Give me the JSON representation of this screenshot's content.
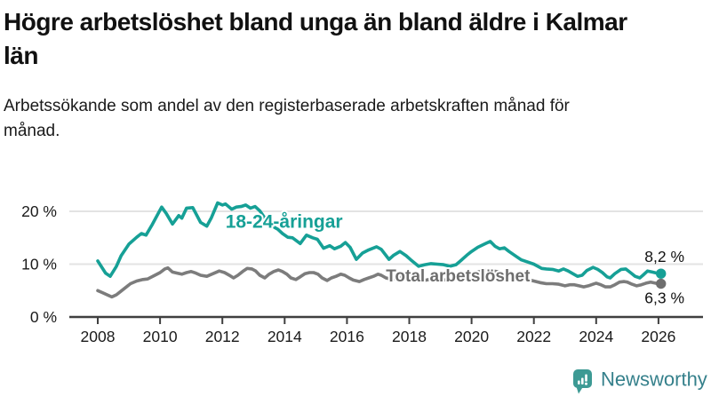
{
  "header": {
    "title": "Högre arbetslöshet bland unga än bland äldre i Kalmar län",
    "subtitle": "Arbetssökande som andel av den registerbaserade arbetskraften månad för månad."
  },
  "branding": {
    "name": "Newsworthy",
    "icon": "newsworthy-chart-bubble-icon",
    "icon_color": "#3d9a94",
    "text_color": "#35808b"
  },
  "colors": {
    "youth_line": "#16a096",
    "total_line": "#7c7c7c",
    "total_label": "#6e6e6e",
    "total_dot": "#6e6e6e",
    "gridline": "#e3e3e3",
    "axis": "#3f3f3f"
  },
  "chart_data": {
    "type": "line",
    "title": "Högre arbetslöshet bland unga än bland äldre i Kalmar län",
    "xlabel": "",
    "ylabel": "",
    "grid": "horizontal",
    "legend_position": "inline-labels",
    "x_axis": {
      "ticks": [
        2008,
        2010,
        2012,
        2014,
        2016,
        2018,
        2020,
        2022,
        2024,
        2026
      ],
      "min": 2007.1,
      "max": 2027.4
    },
    "y_axis": {
      "ticks": [
        {
          "value": 0,
          "label": "0 %"
        },
        {
          "value": 10,
          "label": "10 %"
        },
        {
          "value": 20,
          "label": "20 %"
        }
      ],
      "min": 0,
      "max": 22.5
    },
    "series": [
      {
        "name": "18-24-åringar",
        "color": "#16a096",
        "end_label": "8,2 %",
        "end_value": 8.2,
        "label_anchor": {
          "x": 2012.1,
          "y": 18.1
        },
        "points": [
          [
            2008.0,
            10.6
          ],
          [
            2008.25,
            8.3
          ],
          [
            2008.4,
            7.7
          ],
          [
            2008.6,
            9.6
          ],
          [
            2008.75,
            11.6
          ],
          [
            2009.0,
            13.8
          ],
          [
            2009.25,
            15.1
          ],
          [
            2009.4,
            15.8
          ],
          [
            2009.55,
            15.5
          ],
          [
            2009.75,
            17.5
          ],
          [
            2010.05,
            20.8
          ],
          [
            2010.2,
            19.6
          ],
          [
            2010.4,
            17.6
          ],
          [
            2010.6,
            19.2
          ],
          [
            2010.7,
            18.7
          ],
          [
            2010.85,
            20.6
          ],
          [
            2011.05,
            20.7
          ],
          [
            2011.3,
            17.9
          ],
          [
            2011.5,
            17.2
          ],
          [
            2011.65,
            18.8
          ],
          [
            2011.85,
            21.6
          ],
          [
            2012.0,
            21.2
          ],
          [
            2012.1,
            21.4
          ],
          [
            2012.3,
            20.4
          ],
          [
            2012.45,
            20.8
          ],
          [
            2012.6,
            20.9
          ],
          [
            2012.75,
            21.2
          ],
          [
            2012.9,
            20.6
          ],
          [
            2013.05,
            20.9
          ],
          [
            2013.2,
            20.1
          ],
          [
            2013.4,
            18.4
          ],
          [
            2013.6,
            17.2
          ],
          [
            2013.78,
            16.6
          ],
          [
            2013.93,
            15.8
          ],
          [
            2014.1,
            15.1
          ],
          [
            2014.25,
            15.0
          ],
          [
            2014.5,
            13.9
          ],
          [
            2014.7,
            15.5
          ],
          [
            2014.9,
            15.0
          ],
          [
            2015.05,
            14.7
          ],
          [
            2015.25,
            13.0
          ],
          [
            2015.45,
            13.5
          ],
          [
            2015.6,
            12.9
          ],
          [
            2015.8,
            13.4
          ],
          [
            2015.95,
            14.1
          ],
          [
            2016.1,
            13.2
          ],
          [
            2016.3,
            10.9
          ],
          [
            2016.5,
            12.1
          ],
          [
            2016.7,
            12.7
          ],
          [
            2016.95,
            13.3
          ],
          [
            2017.1,
            12.8
          ],
          [
            2017.35,
            10.9
          ],
          [
            2017.5,
            11.7
          ],
          [
            2017.7,
            12.4
          ],
          [
            2017.9,
            11.6
          ],
          [
            2018.05,
            10.8
          ],
          [
            2018.3,
            9.6
          ],
          [
            2018.5,
            9.9
          ],
          [
            2018.7,
            10.1
          ],
          [
            2018.9,
            10.0
          ],
          [
            2019.1,
            9.9
          ],
          [
            2019.3,
            9.6
          ],
          [
            2019.5,
            9.9
          ],
          [
            2019.7,
            10.9
          ],
          [
            2019.85,
            11.7
          ],
          [
            2020.0,
            12.4
          ],
          [
            2020.2,
            13.2
          ],
          [
            2020.45,
            13.9
          ],
          [
            2020.6,
            14.3
          ],
          [
            2020.75,
            13.4
          ],
          [
            2020.9,
            12.9
          ],
          [
            2021.05,
            13.1
          ],
          [
            2021.2,
            12.4
          ],
          [
            2021.45,
            11.4
          ],
          [
            2021.6,
            10.8
          ],
          [
            2021.8,
            10.4
          ],
          [
            2022.0,
            10.0
          ],
          [
            2022.25,
            9.2
          ],
          [
            2022.4,
            9.1
          ],
          [
            2022.6,
            9.0
          ],
          [
            2022.8,
            8.7
          ],
          [
            2022.95,
            9.1
          ],
          [
            2023.1,
            8.7
          ],
          [
            2023.25,
            8.2
          ],
          [
            2023.4,
            7.7
          ],
          [
            2023.55,
            7.9
          ],
          [
            2023.7,
            8.8
          ],
          [
            2023.9,
            9.4
          ],
          [
            2024.05,
            9.0
          ],
          [
            2024.2,
            8.4
          ],
          [
            2024.35,
            7.6
          ],
          [
            2024.45,
            7.4
          ],
          [
            2024.6,
            8.2
          ],
          [
            2024.8,
            9.0
          ],
          [
            2024.95,
            9.1
          ],
          [
            2025.1,
            8.4
          ],
          [
            2025.25,
            7.7
          ],
          [
            2025.4,
            7.4
          ],
          [
            2025.5,
            7.9
          ],
          [
            2025.65,
            8.7
          ],
          [
            2025.8,
            8.5
          ],
          [
            2025.95,
            8.3
          ],
          [
            2026.08,
            8.2
          ]
        ]
      },
      {
        "name": "Total arbetslöshet",
        "color": "#7c7c7c",
        "end_label": "6,3 %",
        "end_value": 6.3,
        "label_anchor": {
          "x": 2017.25,
          "y": 7.9
        },
        "points": [
          [
            2008.0,
            5.0
          ],
          [
            2008.15,
            4.6
          ],
          [
            2008.3,
            4.2
          ],
          [
            2008.45,
            3.8
          ],
          [
            2008.6,
            4.2
          ],
          [
            2008.75,
            4.9
          ],
          [
            2008.9,
            5.6
          ],
          [
            2009.05,
            6.3
          ],
          [
            2009.25,
            6.8
          ],
          [
            2009.45,
            7.1
          ],
          [
            2009.6,
            7.2
          ],
          [
            2009.8,
            7.8
          ],
          [
            2010.0,
            8.4
          ],
          [
            2010.15,
            9.1
          ],
          [
            2010.25,
            9.3
          ],
          [
            2010.4,
            8.5
          ],
          [
            2010.55,
            8.3
          ],
          [
            2010.7,
            8.1
          ],
          [
            2010.85,
            8.4
          ],
          [
            2011.0,
            8.6
          ],
          [
            2011.15,
            8.3
          ],
          [
            2011.3,
            7.9
          ],
          [
            2011.5,
            7.7
          ],
          [
            2011.7,
            8.2
          ],
          [
            2011.9,
            8.7
          ],
          [
            2012.07,
            8.4
          ],
          [
            2012.25,
            7.8
          ],
          [
            2012.36,
            7.4
          ],
          [
            2012.5,
            7.9
          ],
          [
            2012.65,
            8.6
          ],
          [
            2012.8,
            9.2
          ],
          [
            2012.95,
            9.1
          ],
          [
            2013.07,
            8.7
          ],
          [
            2013.2,
            7.9
          ],
          [
            2013.36,
            7.4
          ],
          [
            2013.5,
            8.1
          ],
          [
            2013.65,
            8.6
          ],
          [
            2013.8,
            8.9
          ],
          [
            2013.93,
            8.6
          ],
          [
            2014.07,
            8.1
          ],
          [
            2014.2,
            7.4
          ],
          [
            2014.36,
            7.1
          ],
          [
            2014.5,
            7.6
          ],
          [
            2014.65,
            8.2
          ],
          [
            2014.8,
            8.4
          ],
          [
            2014.93,
            8.4
          ],
          [
            2015.07,
            8.1
          ],
          [
            2015.2,
            7.4
          ],
          [
            2015.36,
            6.9
          ],
          [
            2015.5,
            7.4
          ],
          [
            2015.65,
            7.7
          ],
          [
            2015.8,
            8.1
          ],
          [
            2015.93,
            7.9
          ],
          [
            2016.07,
            7.4
          ],
          [
            2016.2,
            7.0
          ],
          [
            2016.4,
            6.7
          ],
          [
            2016.55,
            7.1
          ],
          [
            2016.7,
            7.4
          ],
          [
            2016.85,
            7.7
          ],
          [
            2017.0,
            8.1
          ],
          [
            2017.1,
            7.9
          ],
          [
            2017.25,
            7.4
          ],
          [
            2017.4,
            7.2
          ],
          [
            2017.55,
            7.3
          ],
          [
            2017.7,
            7.5
          ],
          [
            2017.85,
            7.6
          ],
          [
            2018.0,
            7.3
          ],
          [
            2018.2,
            6.9
          ],
          [
            2018.4,
            6.8
          ],
          [
            2018.55,
            7.0
          ],
          [
            2018.7,
            7.2
          ],
          [
            2018.9,
            7.3
          ],
          [
            2019.05,
            7.1
          ],
          [
            2019.25,
            6.9
          ],
          [
            2019.4,
            7.1
          ],
          [
            2019.6,
            7.4
          ],
          [
            2019.8,
            7.7
          ],
          [
            2020.0,
            8.0
          ],
          [
            2020.2,
            8.5
          ],
          [
            2020.4,
            8.8
          ],
          [
            2020.6,
            8.8
          ],
          [
            2020.8,
            8.6
          ],
          [
            2021.0,
            8.3
          ],
          [
            2021.2,
            7.9
          ],
          [
            2021.4,
            7.6
          ],
          [
            2021.6,
            7.3
          ],
          [
            2021.8,
            7.1
          ],
          [
            2022.0,
            6.8
          ],
          [
            2022.2,
            6.5
          ],
          [
            2022.4,
            6.3
          ],
          [
            2022.6,
            6.3
          ],
          [
            2022.8,
            6.2
          ],
          [
            2023.0,
            5.9
          ],
          [
            2023.15,
            6.1
          ],
          [
            2023.3,
            6.1
          ],
          [
            2023.45,
            5.9
          ],
          [
            2023.6,
            5.7
          ],
          [
            2023.75,
            5.9
          ],
          [
            2023.9,
            6.2
          ],
          [
            2024.0,
            6.4
          ],
          [
            2024.15,
            6.1
          ],
          [
            2024.3,
            5.7
          ],
          [
            2024.45,
            5.7
          ],
          [
            2024.6,
            6.1
          ],
          [
            2024.75,
            6.6
          ],
          [
            2024.9,
            6.7
          ],
          [
            2025.0,
            6.6
          ],
          [
            2025.15,
            6.2
          ],
          [
            2025.3,
            5.9
          ],
          [
            2025.45,
            6.1
          ],
          [
            2025.6,
            6.4
          ],
          [
            2025.75,
            6.6
          ],
          [
            2025.9,
            6.4
          ],
          [
            2026.08,
            6.3
          ]
        ]
      }
    ]
  }
}
